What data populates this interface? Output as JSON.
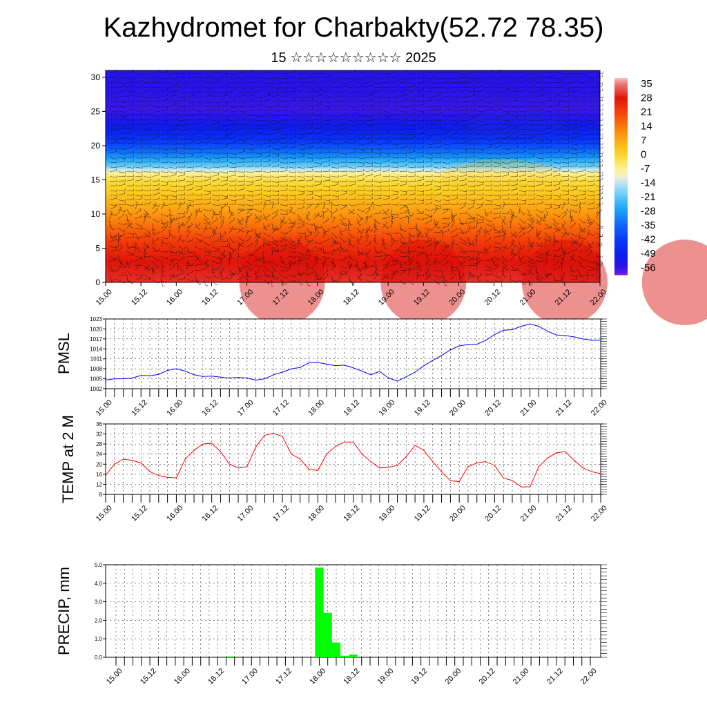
{
  "header": {
    "title": "Kazhydromet for Charbakty(52.72 78.35)",
    "subtitle": "15 ☆☆☆☆☆☆☆☆☆ 2025"
  },
  "colors": {
    "pmsl_line": "#0000ff",
    "temp_line": "#ff0000",
    "precip_bar": "#00ff00",
    "grid": "#000000"
  },
  "time_ticks": [
    "15.00",
    "15.12",
    "16.00",
    "16.12",
    "17.00",
    "17.12",
    "18.00",
    "18.12",
    "19.00",
    "19.12",
    "20.00",
    "20.12",
    "21.00",
    "21.12",
    "22.00"
  ],
  "chart_data": [
    {
      "type": "heatmap",
      "title": "",
      "xlabel": "",
      "ylabel": "",
      "x_ticks": [
        "15.00",
        "15.12",
        "16.00",
        "16.12",
        "17.00",
        "17.12",
        "18.00",
        "18.12",
        "19.00",
        "19.12",
        "20.00",
        "20.12",
        "21.00",
        "21.12",
        "22.00"
      ],
      "y_ticks": [
        "0",
        "5",
        "10",
        "15",
        "20",
        "25",
        "30"
      ],
      "ylim": [
        0,
        31
      ],
      "colorbar_labels": [
        "35",
        "28",
        "21",
        "14",
        "7",
        "0",
        "-7",
        "-14",
        "-21",
        "-28",
        "-35",
        "-42",
        "-49",
        "-56"
      ],
      "colorbar_range": [
        -60,
        38
      ],
      "profile_heights": [
        0,
        3,
        6,
        10,
        13,
        15,
        16,
        17,
        19,
        21,
        23,
        25,
        28,
        31
      ],
      "profile_temps": [
        30,
        28,
        22,
        10,
        2,
        -2,
        -8,
        -20,
        -34,
        -45,
        -52,
        -57,
        -56,
        -55
      ]
    },
    {
      "type": "line",
      "ylabel": "PMSL",
      "ylim": [
        1002,
        1023
      ],
      "y_ticks": [
        "1002",
        "1005",
        "1008",
        "1011",
        "1014",
        "1017",
        "1020",
        "1023"
      ],
      "x_ticks": [
        "15.00",
        "15.12",
        "16.00",
        "16.12",
        "17.00",
        "17.12",
        "18.00",
        "18.12",
        "19.00",
        "19.12",
        "20.00",
        "20.12",
        "21.00",
        "21.12",
        "22.00"
      ],
      "series": [
        {
          "values": [
            1004.6,
            1005.0,
            1005.0,
            1005.2,
            1006.0,
            1005.9,
            1006.3,
            1007.5,
            1008.0,
            1007.3,
            1006.2,
            1005.7,
            1005.8,
            1005.5,
            1005.2,
            1005.4,
            1005.2,
            1004.6,
            1005.0,
            1006.2,
            1007.0,
            1008.0,
            1008.4,
            1009.8,
            1009.9,
            1009.4,
            1008.9,
            1009.1,
            1008.3,
            1007.3,
            1006.2,
            1007.2,
            1005.2,
            1004.3,
            1005.6,
            1007.0,
            1008.9,
            1010.5,
            1012.0,
            1013.7,
            1014.9,
            1015.3,
            1015.4,
            1016.6,
            1018.3,
            1019.6,
            1019.8,
            1020.8,
            1021.5,
            1020.8,
            1019.3,
            1018.2,
            1018.0,
            1017.6,
            1017.0,
            1016.6,
            1016.6
          ]
        }
      ]
    },
    {
      "type": "line",
      "ylabel": "TEMP at 2 M",
      "ylim": [
        8,
        36
      ],
      "y_ticks": [
        "8",
        "12",
        "16",
        "20",
        "24",
        "28",
        "32",
        "36"
      ],
      "x_ticks": [
        "15.00",
        "15.12",
        "16.00",
        "16.12",
        "17.00",
        "17.12",
        "18.00",
        "18.12",
        "19.00",
        "19.12",
        "20.00",
        "20.12",
        "21.00",
        "21.12",
        "22.00"
      ],
      "series": [
        {
          "values": [
            15.5,
            20.0,
            22.0,
            21.5,
            20.5,
            17.0,
            15.5,
            14.8,
            14.5,
            22.0,
            25.5,
            28.0,
            28.3,
            25.0,
            20.0,
            18.5,
            19.0,
            27.0,
            31.5,
            32.3,
            31.0,
            24.0,
            22.0,
            18.0,
            17.5,
            24.0,
            27.0,
            28.8,
            28.8,
            24.0,
            21.0,
            18.5,
            18.8,
            19.5,
            23.0,
            27.5,
            25.5,
            21.0,
            17.0,
            13.5,
            13.0,
            19.0,
            20.5,
            21.0,
            19.5,
            14.5,
            13.5,
            11.0,
            11.0,
            19.0,
            22.5,
            24.5,
            25.0,
            21.5,
            18.5,
            17.0,
            16.2
          ]
        }
      ]
    },
    {
      "type": "bar",
      "ylabel": "PRECIP, mm",
      "ylim": [
        0,
        5
      ],
      "y_ticks": [
        "0.0",
        "1.0",
        "2.0",
        "3.0",
        "4.0",
        "5.0"
      ],
      "x_ticks": [
        "15.00",
        "15.12",
        "16.00",
        "16.12",
        "17.00",
        "17.12",
        "18.00",
        "18.12",
        "19.00",
        "19.12",
        "20.00",
        "20.12",
        "21.00",
        "21.12",
        "22.00"
      ],
      "bars": [
        {
          "t": 13.5,
          "value": 0.05
        },
        {
          "t": 24.0,
          "value": 4.85
        },
        {
          "t": 25.0,
          "value": 2.4
        },
        {
          "t": 26.0,
          "value": 0.8
        },
        {
          "t": 27.0,
          "value": 0.08
        },
        {
          "t": 28.0,
          "value": 0.15
        }
      ]
    }
  ]
}
